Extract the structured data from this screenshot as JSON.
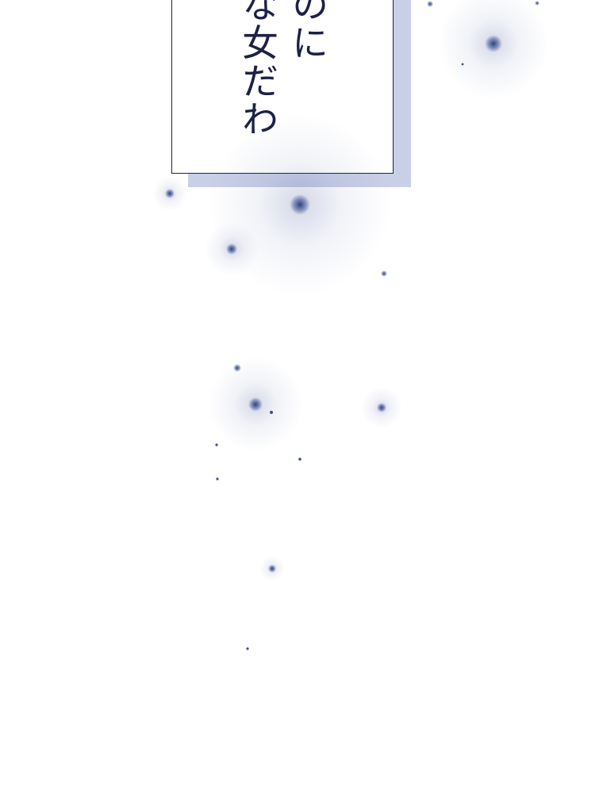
{
  "panel": {
    "text_columns": [
      "のに",
      "な女だわ"
    ]
  },
  "colors": {
    "ink": "#1c2146",
    "sparkle": "#3a4f95",
    "shadow": "#c9cfe6"
  },
  "sparkle_icon": "star-sparkle-icon"
}
